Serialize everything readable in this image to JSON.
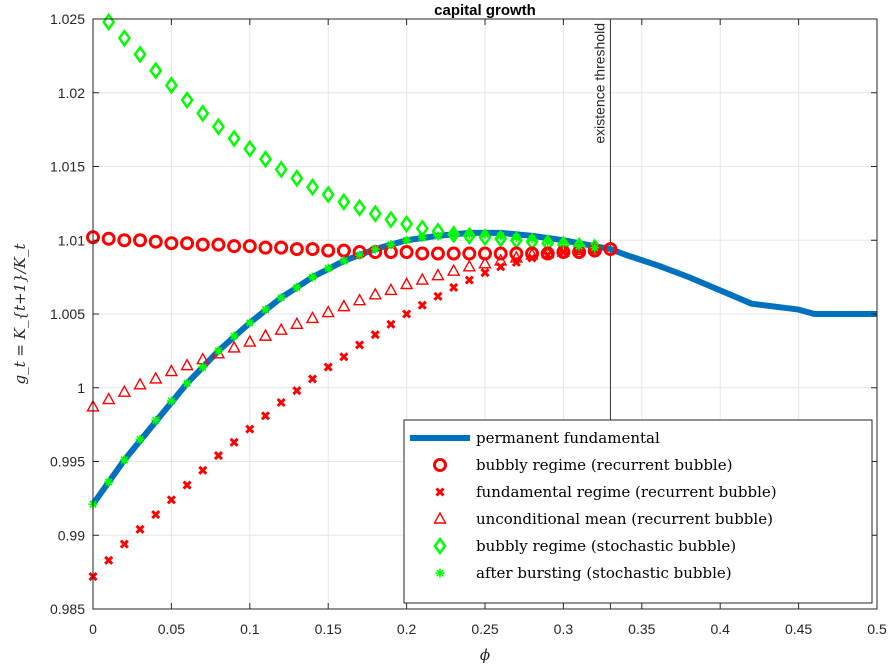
{
  "chart_data": {
    "type": "line",
    "title": "capital growth",
    "xlabel": "ϕ",
    "ylabel": "g_t = K_{t+1}/K_t",
    "xlim": [
      0,
      0.5
    ],
    "ylim": [
      0.985,
      1.025
    ],
    "xticks": [
      0,
      0.05,
      0.1,
      0.15,
      0.2,
      0.25,
      0.3,
      0.35,
      0.4,
      0.45,
      0.5
    ],
    "xtick_labels": [
      "0",
      "0.05",
      "0.1",
      "0.15",
      "0.2",
      "0.25",
      "0.3",
      "0.35",
      "0.4",
      "0.45",
      "0.5"
    ],
    "yticks": [
      0.985,
      0.99,
      0.995,
      1,
      1.005,
      1.01,
      1.015,
      1.02,
      1.025
    ],
    "ytick_labels": [
      "0.985",
      "0.99",
      "0.995",
      "1",
      "1.005",
      "1.01",
      "1.015",
      "1.02",
      "1.025"
    ],
    "grid": true,
    "legend_position": "bottom-right",
    "annotation": {
      "text": "existence threshold",
      "x": 0.33
    },
    "series": [
      {
        "name": "permanent fundamental",
        "marker": "line",
        "color": "#0072BD",
        "x": [
          0,
          0.02,
          0.04,
          0.06,
          0.08,
          0.1,
          0.12,
          0.14,
          0.16,
          0.18,
          0.2,
          0.22,
          0.24,
          0.26,
          0.28,
          0.3,
          0.32,
          0.33,
          0.34,
          0.36,
          0.38,
          0.4,
          0.42,
          0.45,
          0.46,
          0.5
        ],
        "y": [
          0.9921,
          0.9951,
          0.9977,
          1.0003,
          1.0025,
          1.0044,
          1.0061,
          1.0075,
          1.0086,
          1.0094,
          1.01,
          1.0103,
          1.0105,
          1.0105,
          1.0103,
          1.01,
          1.0096,
          1.0094,
          1.009,
          1.0083,
          1.0075,
          1.0066,
          1.0057,
          1.0053,
          1.005,
          1.005
        ]
      },
      {
        "name": "bubbly regime (recurrent bubble)",
        "marker": "circle",
        "color": "#FF0000",
        "x": [
          0,
          0.01,
          0.02,
          0.03,
          0.04,
          0.05,
          0.06,
          0.07,
          0.08,
          0.09,
          0.1,
          0.11,
          0.12,
          0.13,
          0.14,
          0.15,
          0.16,
          0.17,
          0.18,
          0.19,
          0.2,
          0.21,
          0.22,
          0.23,
          0.24,
          0.25,
          0.26,
          0.27,
          0.28,
          0.29,
          0.3,
          0.31,
          0.32,
          0.33
        ],
        "y": [
          1.0102,
          1.0101,
          1.01,
          1.01,
          1.0099,
          1.0098,
          1.0098,
          1.0097,
          1.0097,
          1.0096,
          1.0096,
          1.0095,
          1.0095,
          1.0094,
          1.0094,
          1.0093,
          1.0093,
          1.0092,
          1.0092,
          1.0092,
          1.0092,
          1.0091,
          1.0091,
          1.0091,
          1.0091,
          1.0091,
          1.0091,
          1.0091,
          1.0091,
          1.0091,
          1.0092,
          1.0092,
          1.0093,
          1.0094
        ]
      },
      {
        "name": "fundamental regime (recurrent bubble)",
        "marker": "x",
        "color": "#FF0000",
        "x": [
          0,
          0.01,
          0.02,
          0.03,
          0.04,
          0.05,
          0.06,
          0.07,
          0.08,
          0.09,
          0.1,
          0.11,
          0.12,
          0.13,
          0.14,
          0.15,
          0.16,
          0.17,
          0.18,
          0.19,
          0.2,
          0.21,
          0.22,
          0.23,
          0.24,
          0.25,
          0.26,
          0.27,
          0.28,
          0.29,
          0.3,
          0.31,
          0.32
        ],
        "y": [
          0.9872,
          0.9883,
          0.9894,
          0.9904,
          0.9914,
          0.9924,
          0.9934,
          0.9944,
          0.9954,
          0.9963,
          0.9972,
          0.9981,
          0.999,
          0.9998,
          1.0006,
          1.0014,
          1.0021,
          1.0029,
          1.0036,
          1.0043,
          1.005,
          1.0056,
          1.0062,
          1.0068,
          1.0073,
          1.0078,
          1.0082,
          1.0085,
          1.0088,
          1.009,
          1.0092,
          1.0093,
          1.0094
        ]
      },
      {
        "name": "unconditional mean (recurrent bubble)",
        "marker": "triangle",
        "color": "#FF0000",
        "x": [
          0,
          0.01,
          0.02,
          0.03,
          0.04,
          0.05,
          0.06,
          0.07,
          0.08,
          0.09,
          0.1,
          0.11,
          0.12,
          0.13,
          0.14,
          0.15,
          0.16,
          0.17,
          0.18,
          0.19,
          0.2,
          0.21,
          0.22,
          0.23,
          0.24,
          0.25,
          0.26,
          0.27,
          0.28,
          0.29,
          0.3,
          0.31,
          0.32
        ],
        "y": [
          0.9987,
          0.9992,
          0.9997,
          1.0002,
          1.0006,
          1.0011,
          1.0015,
          1.0019,
          1.0023,
          1.0027,
          1.0031,
          1.0035,
          1.0039,
          1.0043,
          1.0047,
          1.0051,
          1.0055,
          1.0059,
          1.0063,
          1.0066,
          1.007,
          1.0073,
          1.0076,
          1.0079,
          1.0082,
          1.0084,
          1.0086,
          1.0088,
          1.009,
          1.0091,
          1.0092,
          1.0093,
          1.0094
        ]
      },
      {
        "name": "bubbly regime (stochastic bubble)",
        "marker": "diamond",
        "color": "#00FF00",
        "x": [
          0.01,
          0.02,
          0.03,
          0.04,
          0.05,
          0.06,
          0.07,
          0.08,
          0.09,
          0.1,
          0.11,
          0.12,
          0.13,
          0.14,
          0.15,
          0.16,
          0.17,
          0.18,
          0.19,
          0.2,
          0.21,
          0.22,
          0.23,
          0.24,
          0.25,
          0.26,
          0.27,
          0.28,
          0.29,
          0.3,
          0.31,
          0.32
        ],
        "y": [
          1.0248,
          1.0237,
          1.0226,
          1.0215,
          1.0205,
          1.0195,
          1.0186,
          1.0177,
          1.0169,
          1.0162,
          1.0155,
          1.0148,
          1.0142,
          1.0136,
          1.0131,
          1.0126,
          1.0122,
          1.0118,
          1.0114,
          1.0111,
          1.0108,
          1.0106,
          1.0104,
          1.0103,
          1.0102,
          1.0101,
          1.01,
          1.0099,
          1.0098,
          1.0097,
          1.0096,
          1.0095
        ]
      },
      {
        "name": "after bursting (stochastic bubble)",
        "marker": "asterisk",
        "color": "#00FF00",
        "x": [
          0,
          0.01,
          0.02,
          0.03,
          0.04,
          0.05,
          0.06,
          0.07,
          0.08,
          0.09,
          0.1,
          0.11,
          0.12,
          0.13,
          0.14,
          0.15,
          0.16,
          0.17,
          0.18,
          0.19,
          0.2,
          0.21,
          0.22,
          0.23,
          0.24,
          0.25,
          0.26,
          0.27,
          0.28,
          0.29,
          0.3,
          0.31,
          0.32
        ],
        "y": [
          0.9921,
          0.9936,
          0.9951,
          0.9965,
          0.9978,
          0.9991,
          1.0003,
          1.0014,
          1.0025,
          1.0035,
          1.0044,
          1.0053,
          1.0061,
          1.0068,
          1.0075,
          1.0081,
          1.0086,
          1.009,
          1.0094,
          1.0097,
          1.01,
          1.0102,
          1.0103,
          1.0104,
          1.0104,
          1.0104,
          1.0103,
          1.0102,
          1.0101,
          1.0099,
          1.0098,
          1.0096,
          1.0095
        ]
      }
    ]
  }
}
